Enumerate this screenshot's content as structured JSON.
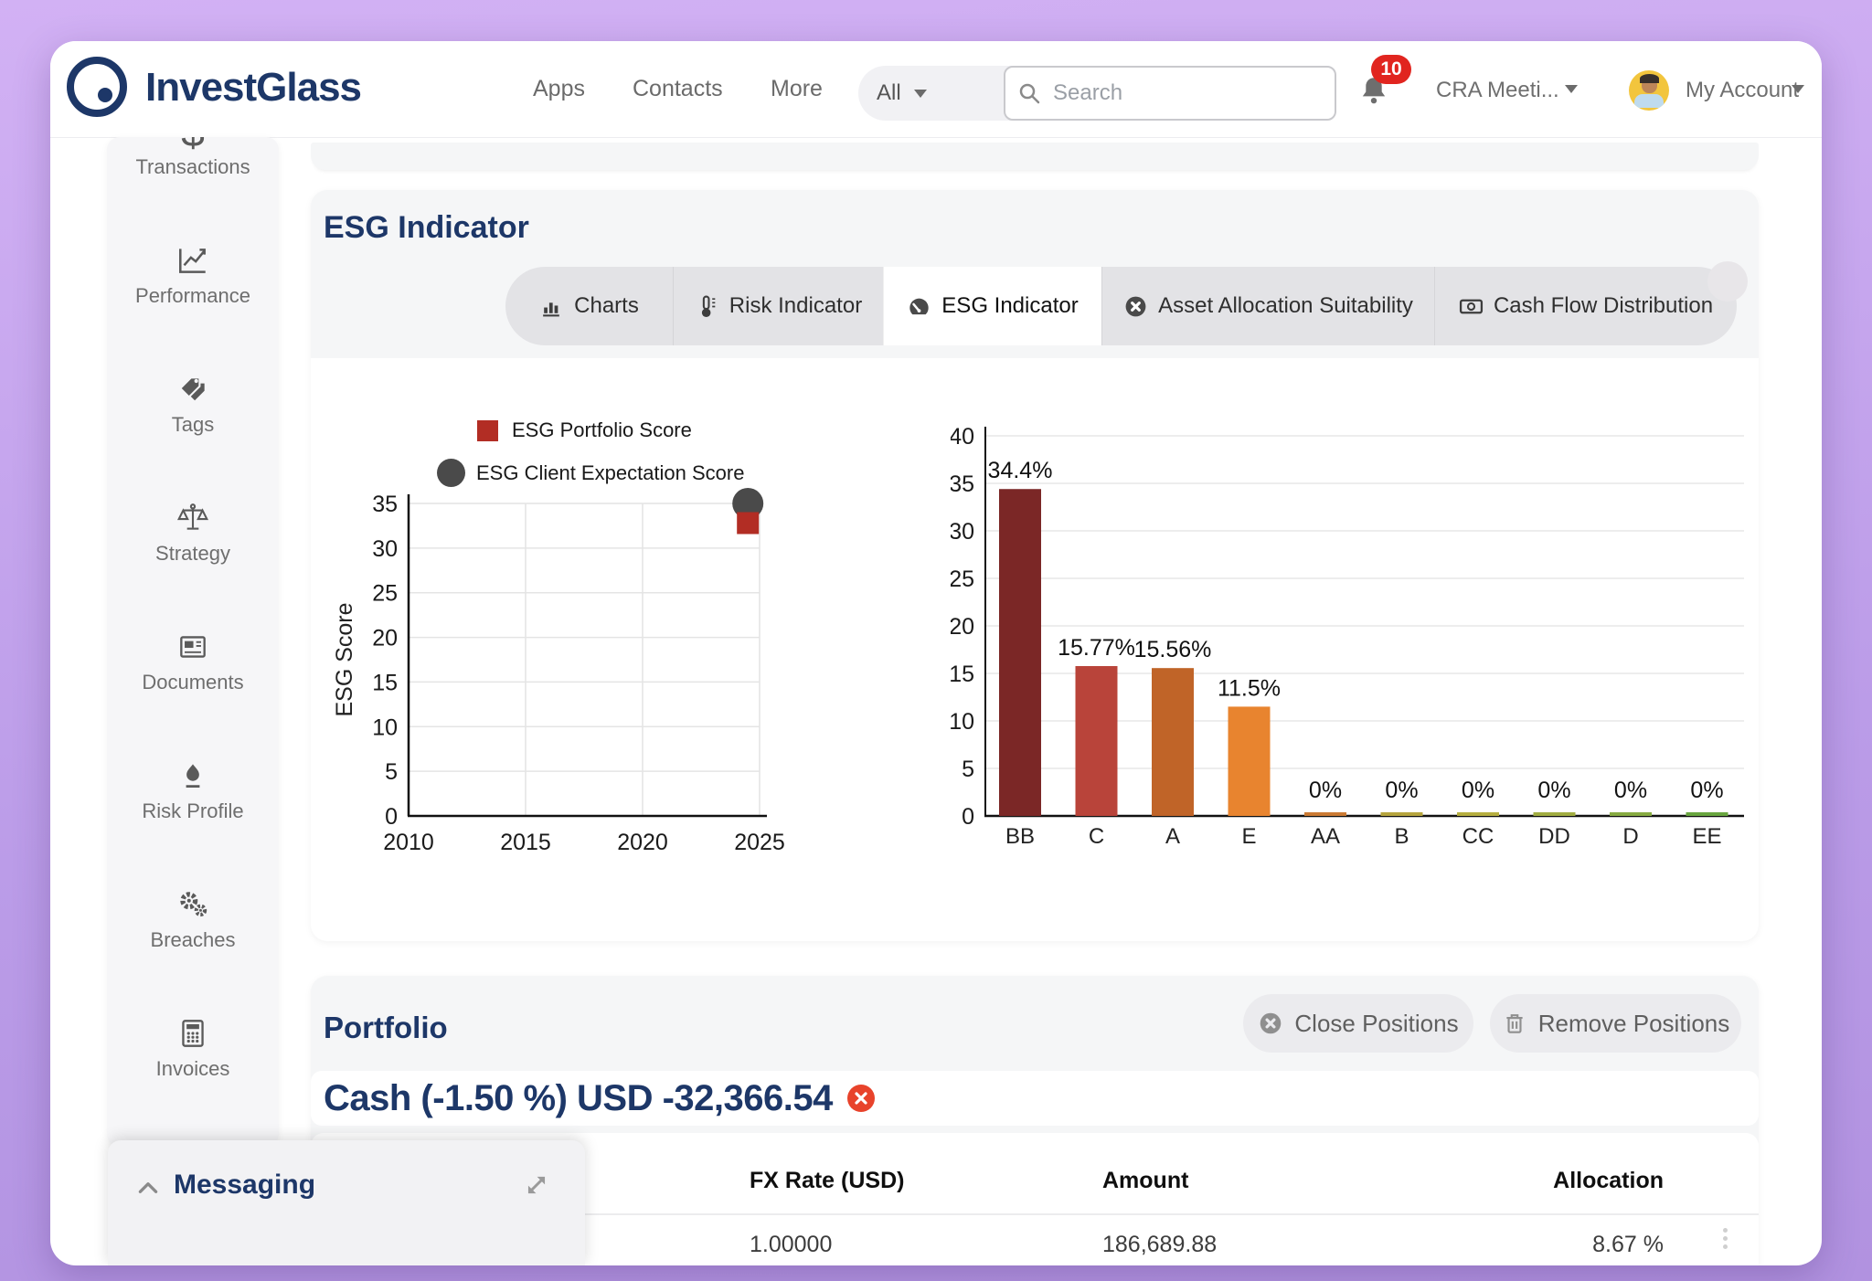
{
  "navbar": {
    "logo_text": "InvestGlass",
    "links": [
      "Apps",
      "Contacts",
      "More"
    ],
    "filter_label": "All",
    "search_placeholder": "Search",
    "notification_count": "10",
    "meeting_dropdown": "CRA Meeti...",
    "account_label": "My Account"
  },
  "sidebar": {
    "items": [
      {
        "label": "Transactions",
        "icon": "dollar-icon"
      },
      {
        "label": "Performance",
        "icon": "line-chart-icon"
      },
      {
        "label": "Tags",
        "icon": "tags-icon"
      },
      {
        "label": "Strategy",
        "icon": "scale-icon"
      },
      {
        "label": "Documents",
        "icon": "newspaper-icon"
      },
      {
        "label": "Risk Profile",
        "icon": "flame-icon"
      },
      {
        "label": "Breaches",
        "icon": "gears-icon"
      },
      {
        "label": "Invoices",
        "icon": "calculator-icon"
      }
    ]
  },
  "esg": {
    "title": "ESG Indicator",
    "tabs": [
      {
        "label": "Charts",
        "icon": "bar-chart-icon"
      },
      {
        "label": "Risk Indicator",
        "icon": "thermometer-icon"
      },
      {
        "label": "ESG Indicator",
        "icon": "gauge-icon",
        "active": true
      },
      {
        "label": "Asset Allocation Suitability",
        "icon": "circle-x-icon"
      },
      {
        "label": "Cash Flow Distribution",
        "icon": "banknote-icon"
      }
    ]
  },
  "chart_data": [
    {
      "type": "scatter",
      "title": "",
      "xlabel": "",
      "ylabel": "ESG Score",
      "xlim": [
        2010,
        2025
      ],
      "ylim": [
        0,
        35
      ],
      "xticks": [
        2010,
        2015,
        2020,
        2025
      ],
      "ytick_step": 5,
      "grid": true,
      "legend_position": "top",
      "series": [
        {
          "name": "ESG Portfolio Score",
          "marker": "square",
          "color": "#b22d24",
          "points": [
            {
              "x": 2024.5,
              "y": 32.8
            }
          ]
        },
        {
          "name": "ESG Client Expectation Score",
          "marker": "circle",
          "color": "#4a4a4a",
          "points": [
            {
              "x": 2024.5,
              "y": 35
            }
          ]
        }
      ]
    },
    {
      "type": "bar",
      "title": "",
      "xlabel": "",
      "ylabel": "",
      "categories": [
        "BB",
        "C",
        "A",
        "E",
        "AA",
        "B",
        "CC",
        "DD",
        "D",
        "EE"
      ],
      "values": [
        34.4,
        15.77,
        15.56,
        11.5,
        0,
        0,
        0,
        0,
        0,
        0
      ],
      "labels": [
        "34.4%",
        "15.77%",
        "15.56%",
        "11.5%",
        "0%",
        "0%",
        "0%",
        "0%",
        "0%",
        "0%"
      ],
      "colors": [
        "#7b2726",
        "#b9443a",
        "#c06428",
        "#e8842f",
        "#cb7a33",
        "#b5a43d",
        "#b5ae3f",
        "#a1ad41",
        "#87ab41",
        "#69a63f"
      ],
      "ylim": [
        0,
        40
      ],
      "ytick_step": 5,
      "grid": true
    }
  ],
  "portfolio": {
    "title": "Portfolio",
    "close_button": "Close Positions",
    "remove_button": "Remove Positions",
    "cash_row_label": "Cash (-1.50 %) USD -32,366.54",
    "table": {
      "headers": [
        "FX Rate (USD)",
        "Amount",
        "Allocation"
      ],
      "rows": [
        [
          "1.00000",
          "186,689.88",
          "8.67 %"
        ]
      ]
    }
  },
  "messaging": {
    "title": "Messaging"
  }
}
